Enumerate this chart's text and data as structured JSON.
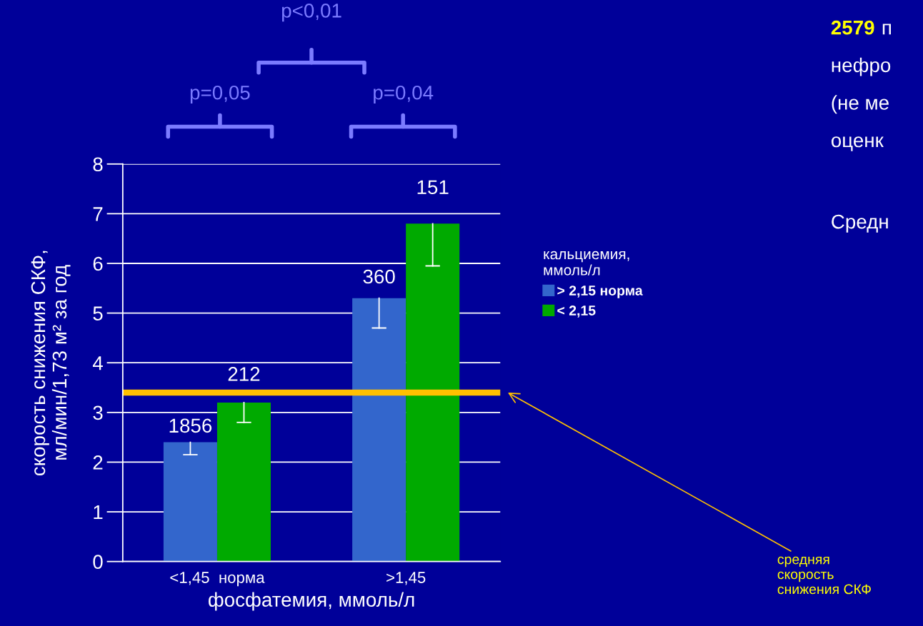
{
  "chart_data": {
    "type": "bar",
    "categories": [
      "<1,45  норма",
      ">1,45"
    ],
    "series": [
      {
        "name": "> 2,15 норма",
        "color": "#3366cc",
        "values": [
          2.4,
          5.3
        ],
        "errors": [
          [
            2.15,
            2.4
          ],
          [
            4.7,
            5.3
          ]
        ]
      },
      {
        "name": "< 2,15",
        "color": "#00aa00",
        "values": [
          3.2,
          6.8
        ],
        "errors": [
          [
            2.8,
            3.2
          ],
          [
            5.95,
            6.8
          ]
        ]
      }
    ],
    "xlabel": "фосфатемия, ммоль/л",
    "ylabel": "скорость снижения СКФ,\nмл/мин/1,73 м² за год",
    "legend_title": "кальциемия,\nммоль/л",
    "legend": "right",
    "ylim": [
      0,
      8
    ],
    "yticks": [
      0,
      1,
      2,
      3,
      4,
      5,
      6,
      7,
      8
    ],
    "grid": "y",
    "ref_lines": [
      {
        "axis": "y",
        "value": 3.4,
        "color": "#ffc000"
      }
    ],
    "annotations": [
      "p=0,05",
      "p=0,04",
      "p<0,01",
      "средняя\nскорость\nснижения СКФ",
      "2579",
      "п",
      "нефро",
      "(не ме",
      "оценк",
      "Средн",
      "1856",
      "360",
      "212",
      "151"
    ]
  }
}
